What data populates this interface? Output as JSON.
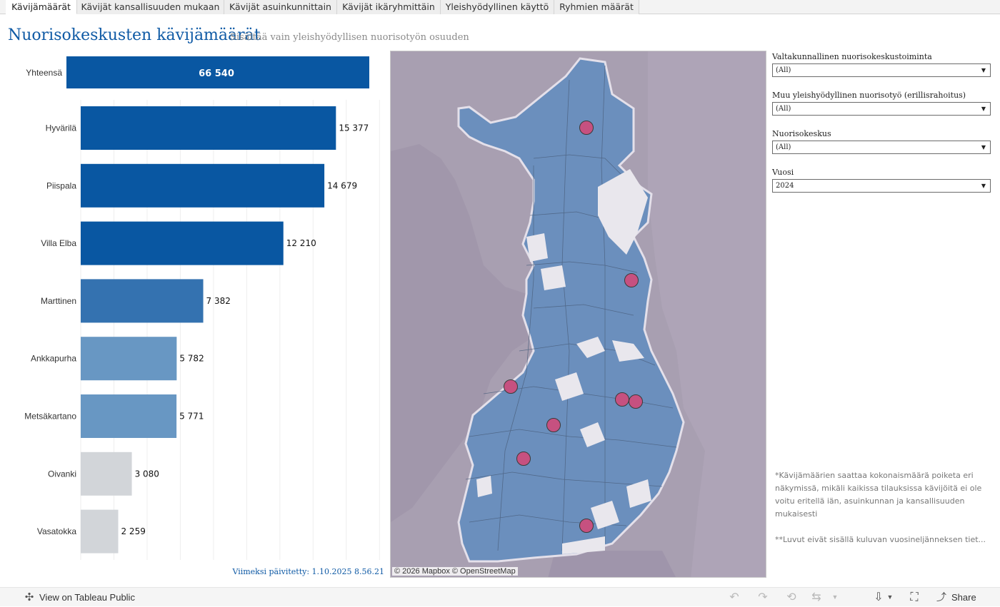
{
  "tabs": [
    {
      "label": "Kävijämäärät",
      "active": true
    },
    {
      "label": "Kävijät kansallisuuden mukaan",
      "active": false
    },
    {
      "label": "Kävijät asuinkunnittain",
      "active": false
    },
    {
      "label": "Kävijät ikäryhmittäin",
      "active": false
    },
    {
      "label": "Yleishyödyllinen käyttö",
      "active": false
    },
    {
      "label": "Ryhmien määrät",
      "active": false
    }
  ],
  "header": {
    "title": "Nuorisokeskusten kävijämäärät",
    "subtitle": "Sisältää vain yleishyödyllisen nuorisotyön osuuden"
  },
  "chart_data": {
    "type": "bar",
    "orientation": "horizontal",
    "total": {
      "label": "Yhteensä",
      "value": 66540,
      "display": "66 540",
      "color": "#0957a2"
    },
    "categories": [
      "Hyvärilä",
      "Piispala",
      "Villa Elba",
      "Marttinen",
      "Ankkapurha",
      "Metsäkartano",
      "Oivanki",
      "Vasatokka"
    ],
    "values": [
      15377,
      14679,
      12210,
      7382,
      5782,
      5771,
      3080,
      2259
    ],
    "value_labels": [
      "15 377",
      "14 679",
      "12 210",
      "7 382",
      "5 782",
      "5 771",
      "3 080",
      "2 259"
    ],
    "colors": [
      "#0957a2",
      "#0957a2",
      "#0957a2",
      "#3472b0",
      "#6897c3",
      "#6897c3",
      "#d2d5d9",
      "#d2d5d9"
    ],
    "xlim": [
      0,
      18000
    ],
    "grid": true
  },
  "updated": "Viimeksi päivitetty: 1.10.2025 8.56.21",
  "map": {
    "credit": "© 2026 Mapbox  © OpenStreetMap",
    "land_color": "#6b8fbd",
    "sea_color": "#a89fb1",
    "marker_color": "#c65180"
  },
  "filters": [
    {
      "label": "Valtakunnallinen nuorisokeskustoiminta",
      "value": "(All)"
    },
    {
      "label": "Muu yleishyödyllinen nuorisotyö (erillisrahoitus)",
      "value": "(All)"
    },
    {
      "label": "Nuorisokeskus",
      "value": "(All)"
    },
    {
      "label": "Vuosi",
      "value": "2024"
    }
  ],
  "notes": {
    "note1": "*Kävijämäärien saattaa kokonaismäärä poiketa eri näkymissä, mikäli kaikissa tilauksissa kävijöitä ei ole voitu eritellä iän, asuinkunnan ja kansallisuuden mukaisesti",
    "note2": "**Luvut eivät sisällä kuluvan vuosineljänneksen tiet..."
  },
  "toolbar": {
    "view_label": "View on Tableau Public",
    "share_label": "Share"
  }
}
